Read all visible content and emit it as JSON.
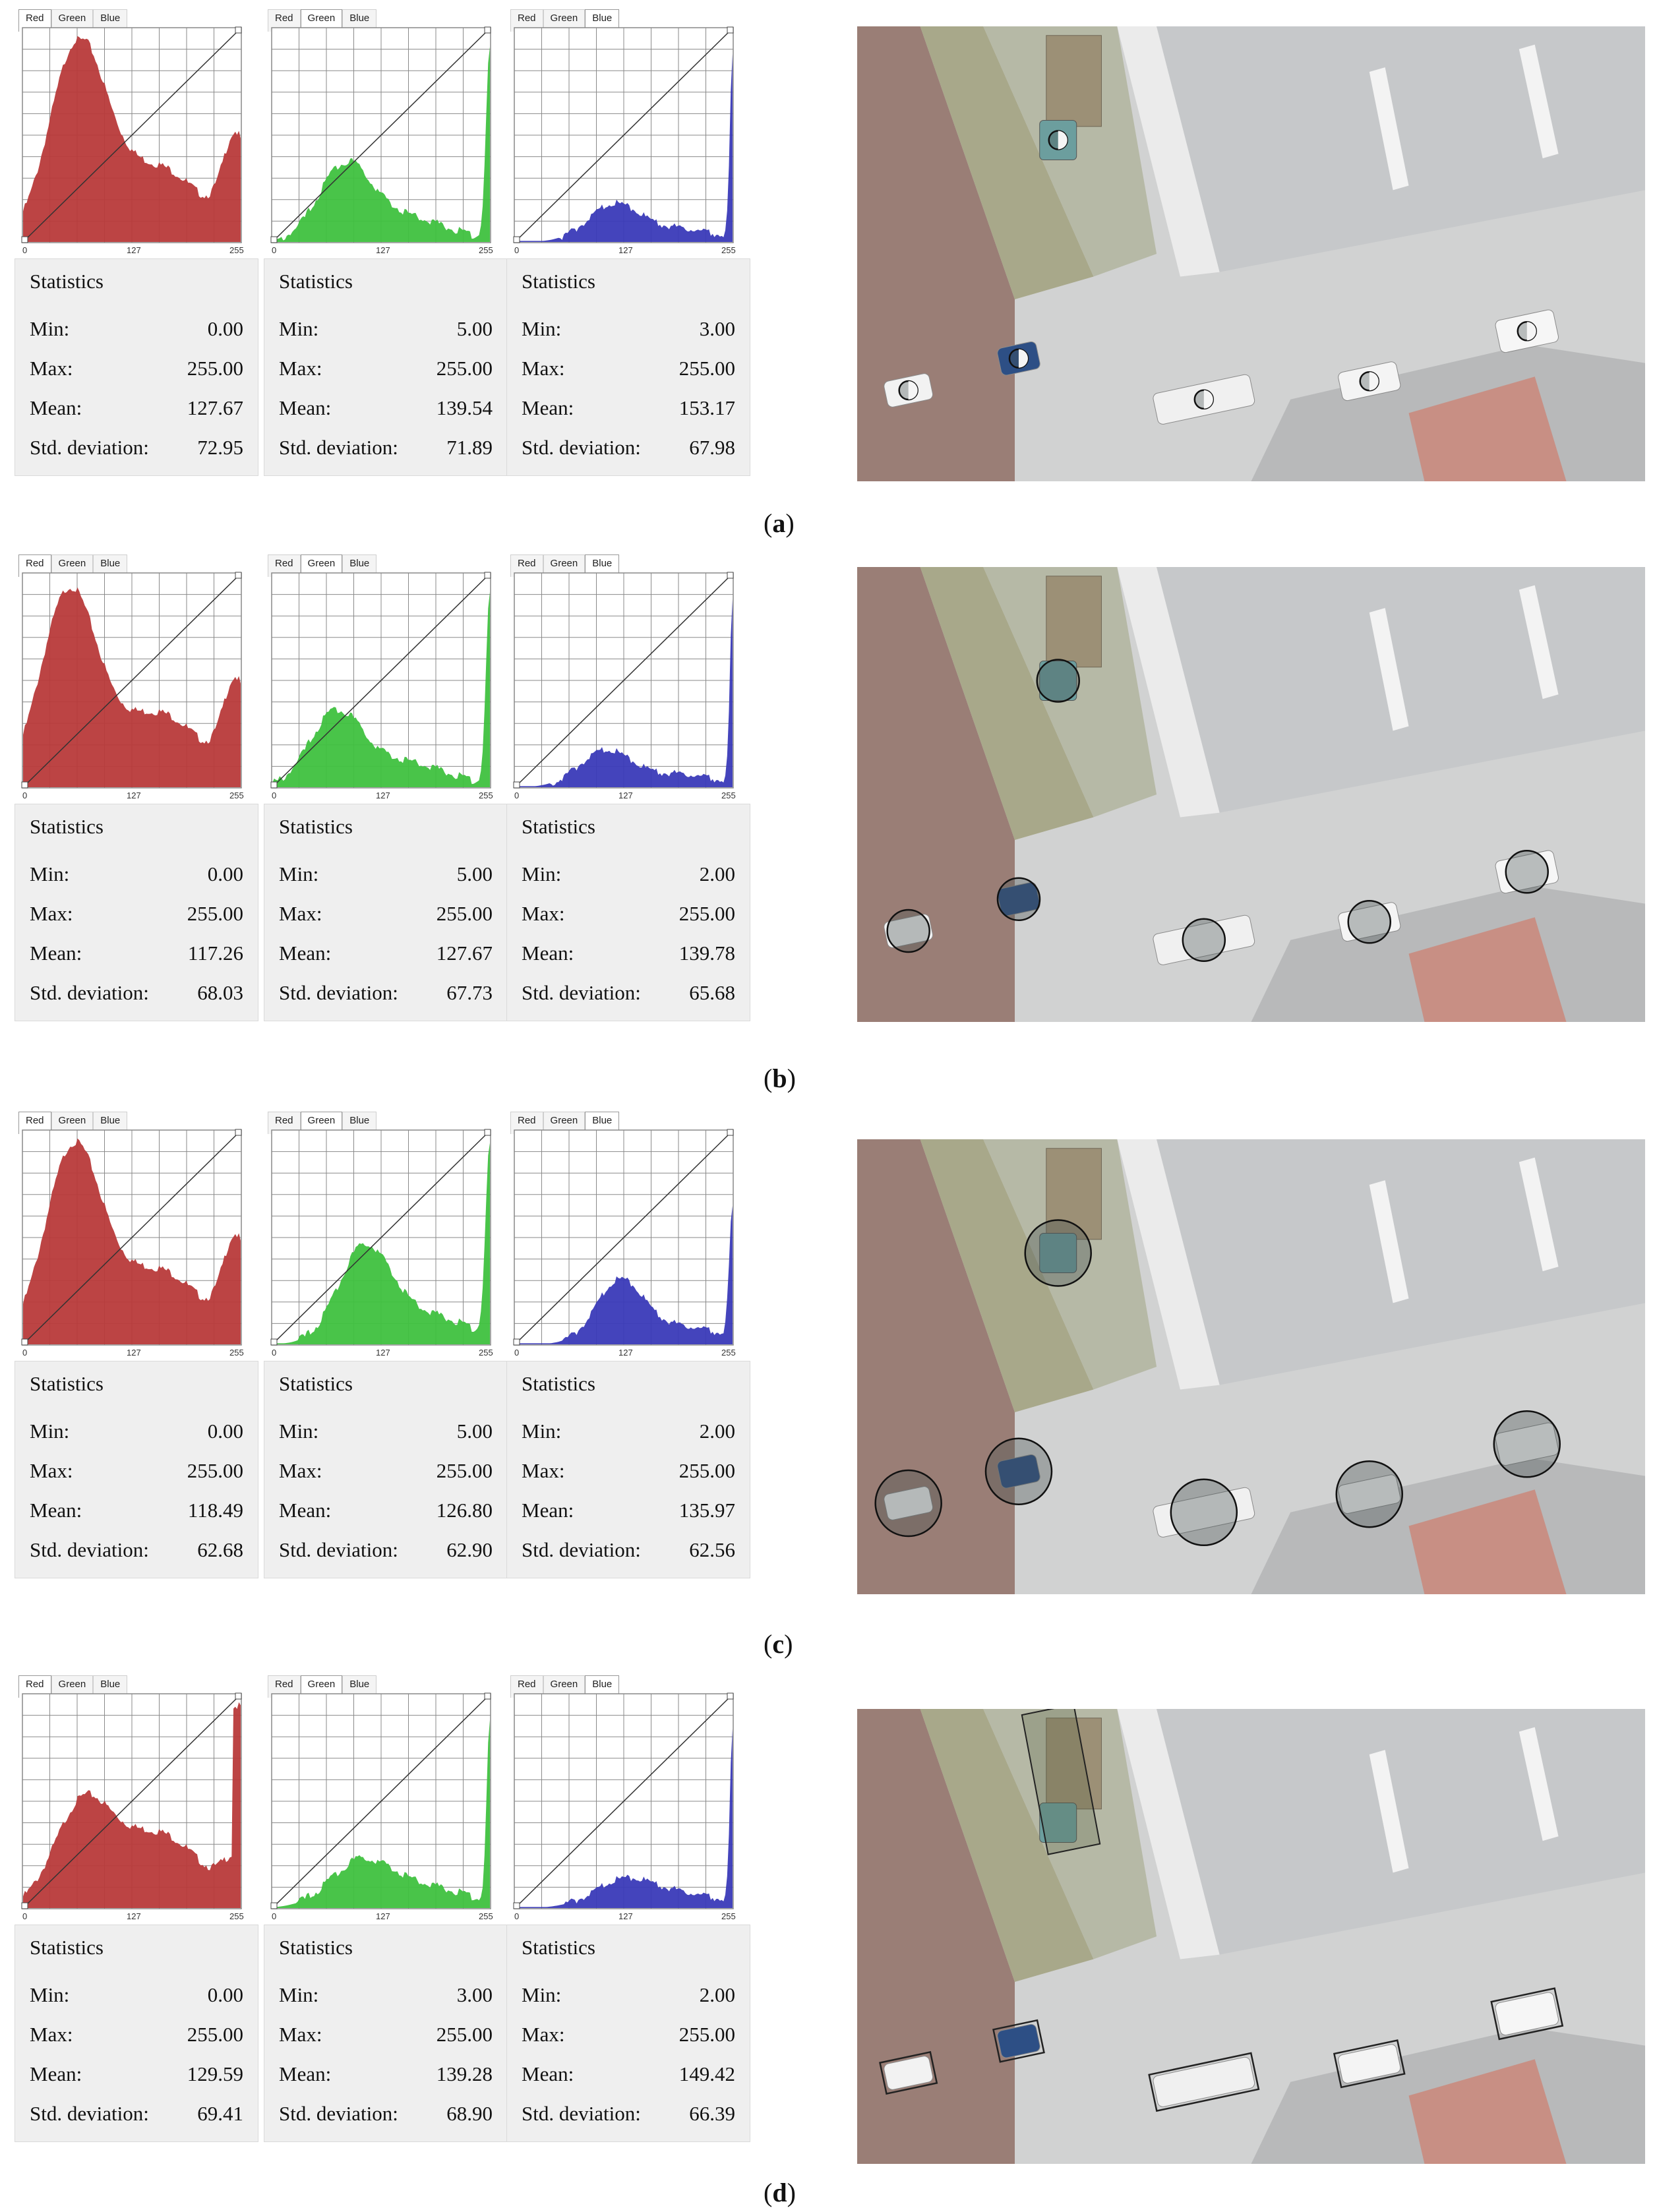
{
  "panels": [
    {
      "caption": "a",
      "tabs": [
        "Red",
        "Green",
        "Blue"
      ],
      "axis_ticks": [
        "0",
        "127",
        "255"
      ],
      "stats_title": "Statistics",
      "labels": {
        "min": "Min:",
        "max": "Max:",
        "mean": "Mean:",
        "std": "Std. deviation:"
      },
      "channels": [
        {
          "name": "Red",
          "color": "#b83a3a",
          "min": "0.00",
          "max": "255.00",
          "mean": "127.67",
          "std": "72.95"
        },
        {
          "name": "Green",
          "color": "#3fc13f",
          "min": "5.00",
          "max": "255.00",
          "mean": "139.54",
          "std": "71.89"
        },
        {
          "name": "Blue",
          "color": "#3a3ab8",
          "min": "3.00",
          "max": "255.00",
          "mean": "153.17",
          "std": "67.98"
        }
      ],
      "marker_style": "small-circle"
    },
    {
      "caption": "b",
      "tabs": [
        "Red",
        "Green",
        "Blue"
      ],
      "axis_ticks": [
        "0",
        "127",
        "255"
      ],
      "stats_title": "Statistics",
      "labels": {
        "min": "Min:",
        "max": "Max:",
        "mean": "Mean:",
        "std": "Std. deviation:"
      },
      "channels": [
        {
          "name": "Red",
          "color": "#b83a3a",
          "min": "0.00",
          "max": "255.00",
          "mean": "117.26",
          "std": "68.03"
        },
        {
          "name": "Green",
          "color": "#3fc13f",
          "min": "5.00",
          "max": "255.00",
          "mean": "127.67",
          "std": "67.73"
        },
        {
          "name": "Blue",
          "color": "#3a3ab8",
          "min": "2.00",
          "max": "255.00",
          "mean": "139.78",
          "std": "65.68"
        }
      ],
      "marker_style": "medium-circle"
    },
    {
      "caption": "c",
      "tabs": [
        "Red",
        "Green",
        "Blue"
      ],
      "axis_ticks": [
        "0",
        "127",
        "255"
      ],
      "stats_title": "Statistics",
      "labels": {
        "min": "Min:",
        "max": "Max:",
        "mean": "Mean:",
        "std": "Std. deviation:"
      },
      "channels": [
        {
          "name": "Red",
          "color": "#b83a3a",
          "min": "0.00",
          "max": "255.00",
          "mean": "118.49",
          "std": "62.68"
        },
        {
          "name": "Green",
          "color": "#3fc13f",
          "min": "5.00",
          "max": "255.00",
          "mean": "126.80",
          "std": "62.90"
        },
        {
          "name": "Blue",
          "color": "#3a3ab8",
          "min": "2.00",
          "max": "255.00",
          "mean": "135.97",
          "std": "62.56"
        }
      ],
      "marker_style": "large-circle"
    },
    {
      "caption": "d",
      "tabs": [
        "Red",
        "Green",
        "Blue"
      ],
      "axis_ticks": [
        "0",
        "127",
        "255"
      ],
      "stats_title": "Statistics",
      "labels": {
        "min": "Min:",
        "max": "Max:",
        "mean": "Mean:",
        "std": "Std. deviation:"
      },
      "channels": [
        {
          "name": "Red",
          "color": "#b83a3a",
          "min": "0.00",
          "max": "255.00",
          "mean": "129.59",
          "std": "69.41"
        },
        {
          "name": "Green",
          "color": "#3fc13f",
          "min": "3.00",
          "max": "255.00",
          "mean": "139.28",
          "std": "68.90"
        },
        {
          "name": "Blue",
          "color": "#3a3ab8",
          "min": "2.00",
          "max": "255.00",
          "mean": "149.42",
          "std": "66.39"
        }
      ],
      "marker_style": "polygon"
    }
  ]
}
